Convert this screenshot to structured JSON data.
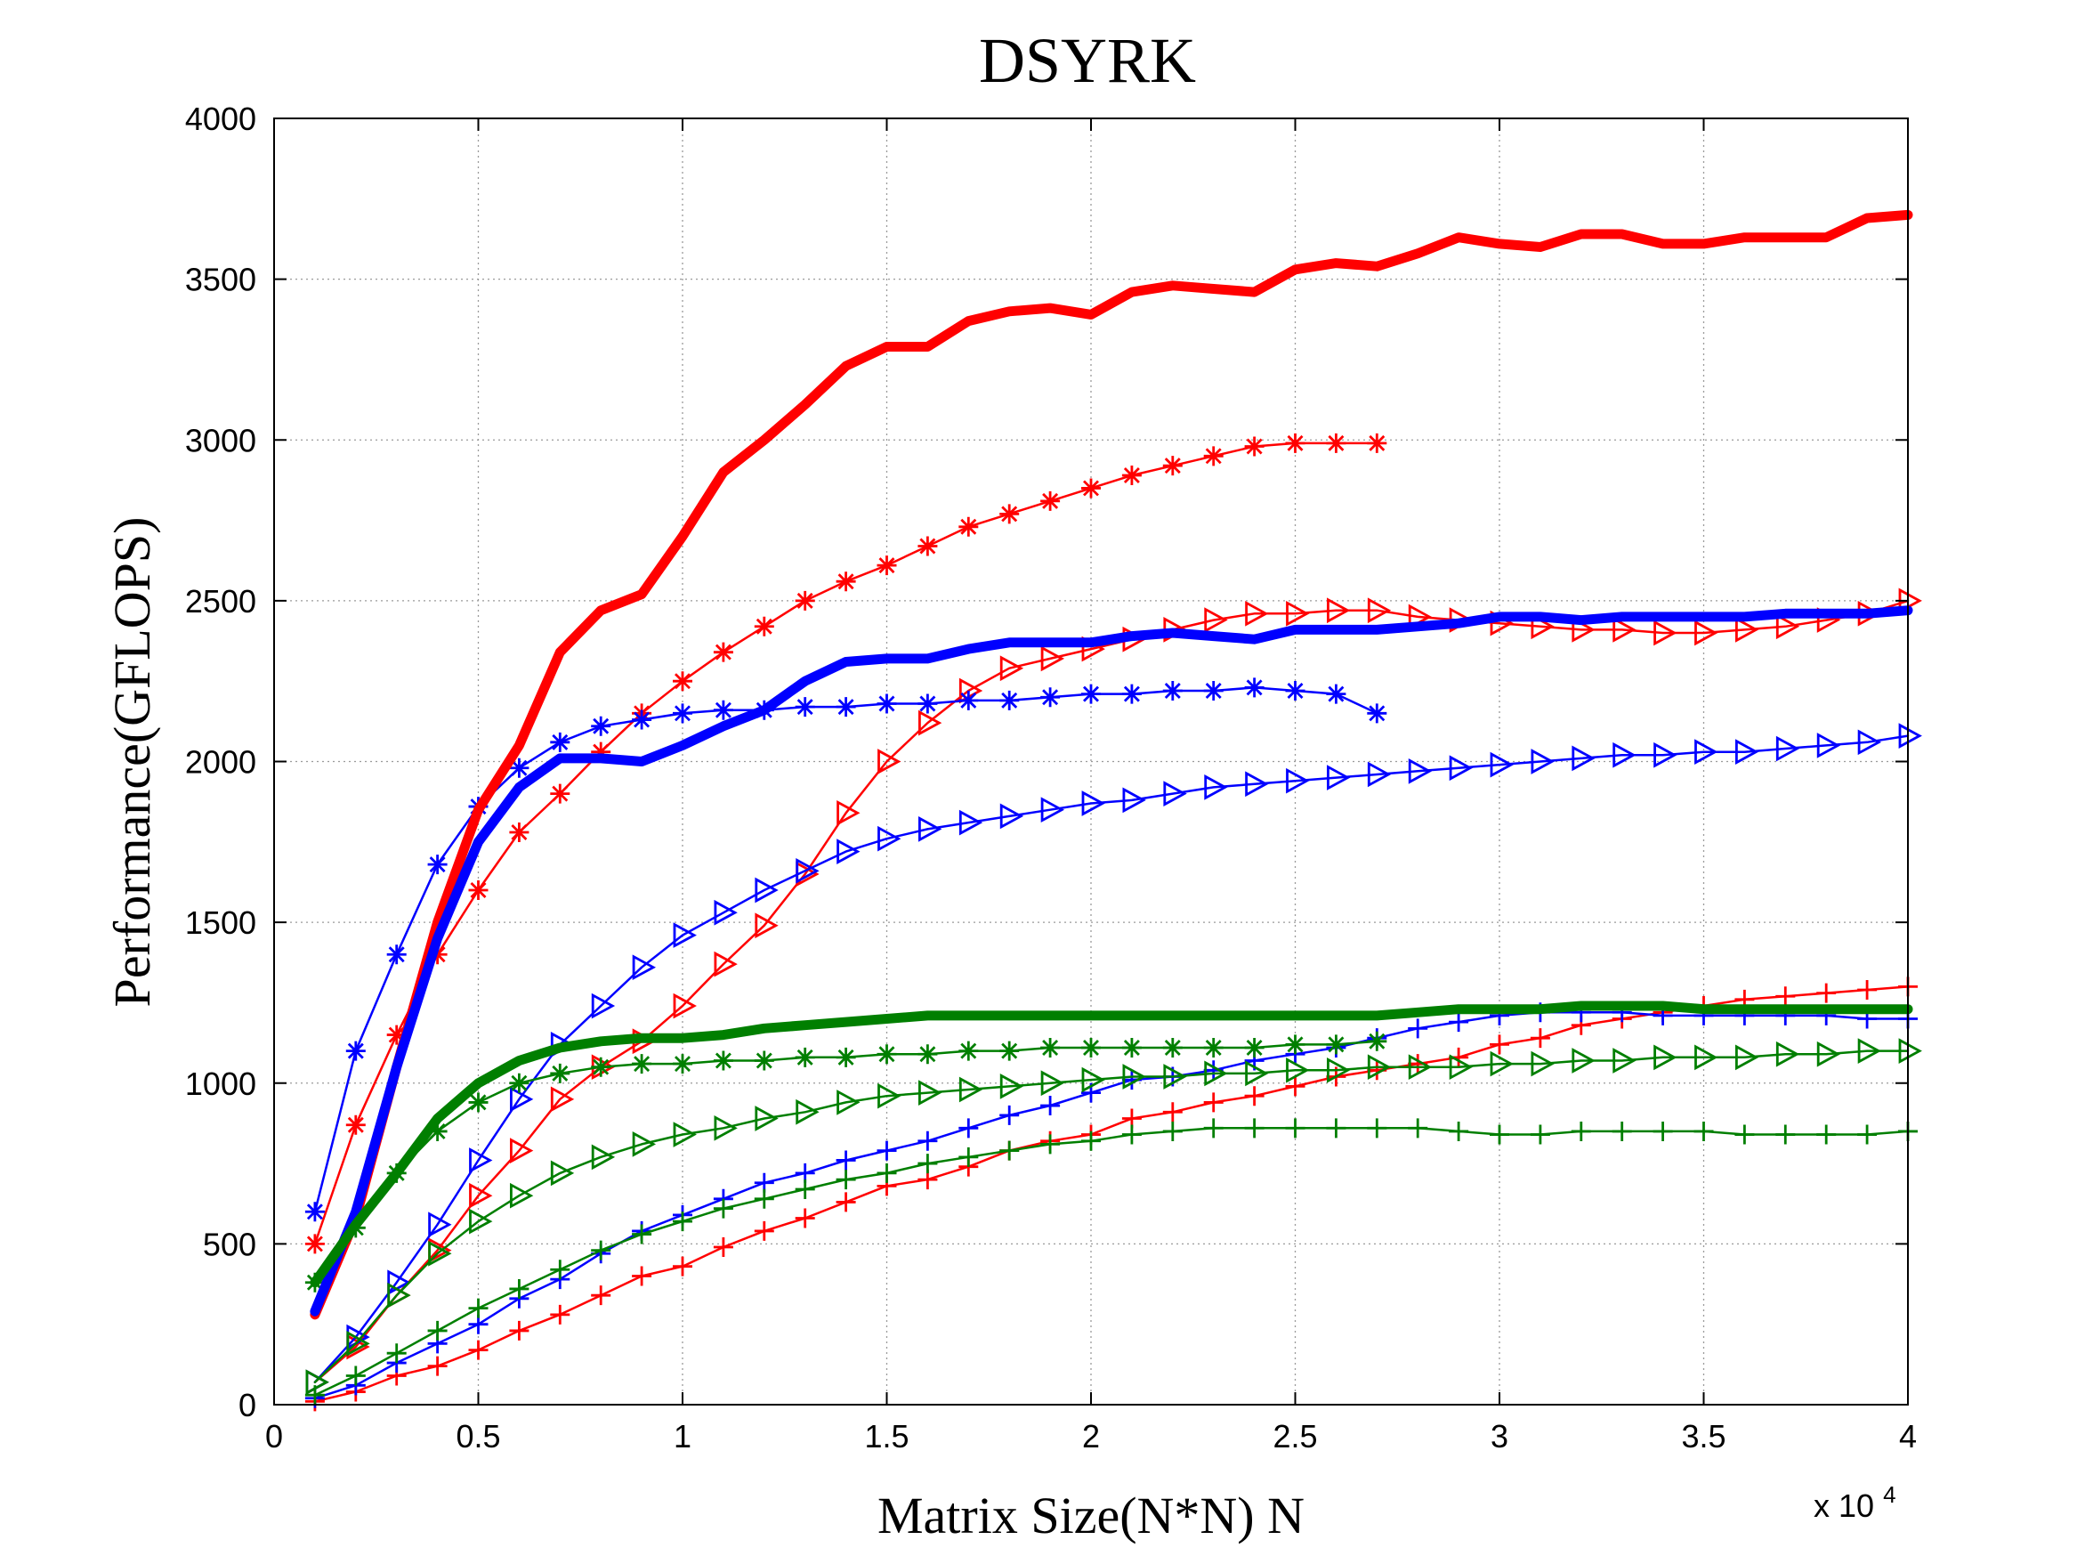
{
  "chart_data": {
    "type": "line",
    "title": "DSYRK",
    "xlabel": "Matrix Size(N*N) N",
    "ylabel": "Performance(GFLOPS)",
    "x_multiplier_label": "x 10",
    "x_multiplier_exponent": "4",
    "xlim": [
      0,
      4
    ],
    "ylim": [
      0,
      4000
    ],
    "grid": true,
    "x_ticks": [
      0,
      0.5,
      1,
      1.5,
      2,
      2.5,
      3,
      3.5,
      4
    ],
    "x_tick_labels": [
      "0",
      "0.5",
      "1",
      "1.5",
      "2",
      "2.5",
      "3",
      "3.5",
      "4"
    ],
    "y_ticks": [
      0,
      500,
      1000,
      1500,
      2000,
      2500,
      3000,
      3500,
      4000
    ],
    "y_tick_labels": [
      "0",
      "500",
      "1000",
      "1500",
      "2000",
      "2500",
      "3000",
      "3500",
      "4000"
    ],
    "colors": {
      "red": "#ff0000",
      "blue": "#0000ff",
      "green": "#007f00"
    },
    "series": [
      {
        "name": "red-thick",
        "color": "red",
        "marker": "none",
        "width": 11,
        "x": [
          0.1,
          0.2,
          0.3,
          0.4,
          0.5,
          0.6,
          0.7,
          0.8,
          0.9,
          1.0,
          1.1,
          1.2,
          1.3,
          1.4,
          1.5,
          1.6,
          1.7,
          1.8,
          1.9,
          2.0,
          2.1,
          2.2,
          2.3,
          2.4,
          2.5,
          2.6,
          2.7,
          2.8,
          2.9,
          3.0,
          3.1,
          3.2,
          3.3,
          3.4,
          3.5,
          3.6,
          3.7,
          3.8,
          3.9,
          4.0
        ],
        "y": [
          280,
          580,
          1050,
          1500,
          1850,
          2050,
          2340,
          2470,
          2520,
          2700,
          2900,
          3000,
          3110,
          3230,
          3290,
          3290,
          3370,
          3400,
          3410,
          3390,
          3460,
          3480,
          3470,
          3460,
          3530,
          3550,
          3540,
          3580,
          3630,
          3610,
          3600,
          3640,
          3640,
          3610,
          3610,
          3630,
          3630,
          3630,
          3690,
          3700
        ]
      },
      {
        "name": "red-star",
        "color": "red",
        "marker": "star",
        "width": 2.5,
        "x": [
          0.1,
          0.2,
          0.3,
          0.4,
          0.5,
          0.6,
          0.7,
          0.8,
          0.9,
          1.0,
          1.1,
          1.2,
          1.3,
          1.4,
          1.5,
          1.6,
          1.7,
          1.8,
          1.9,
          2.0,
          2.1,
          2.2,
          2.3,
          2.4,
          2.5,
          2.6,
          2.7
        ],
        "y": [
          500,
          870,
          1150,
          1400,
          1600,
          1780,
          1900,
          2030,
          2150,
          2250,
          2340,
          2420,
          2500,
          2560,
          2610,
          2670,
          2730,
          2770,
          2810,
          2850,
          2890,
          2920,
          2950,
          2980,
          2990,
          2990,
          2990
        ]
      },
      {
        "name": "red-triangle",
        "color": "red",
        "marker": "triangle",
        "width": 2.5,
        "x": [
          0.1,
          0.2,
          0.3,
          0.4,
          0.5,
          0.6,
          0.7,
          0.8,
          0.9,
          1.0,
          1.1,
          1.2,
          1.3,
          1.4,
          1.5,
          1.6,
          1.7,
          1.8,
          1.9,
          2.0,
          2.1,
          2.2,
          2.3,
          2.4,
          2.5,
          2.6,
          2.7,
          2.8,
          2.9,
          3.0,
          3.1,
          3.2,
          3.3,
          3.4,
          3.5,
          3.6,
          3.7,
          3.8,
          3.9,
          4.0
        ],
        "y": [
          70,
          180,
          340,
          480,
          650,
          790,
          950,
          1050,
          1130,
          1240,
          1370,
          1490,
          1650,
          1840,
          2000,
          2120,
          2220,
          2290,
          2320,
          2350,
          2380,
          2410,
          2440,
          2460,
          2460,
          2470,
          2470,
          2450,
          2440,
          2430,
          2420,
          2410,
          2410,
          2400,
          2400,
          2410,
          2420,
          2440,
          2460,
          2500
        ]
      },
      {
        "name": "red-plus",
        "color": "red",
        "marker": "plus",
        "width": 2.5,
        "x": [
          0.1,
          0.2,
          0.3,
          0.4,
          0.5,
          0.6,
          0.7,
          0.8,
          0.9,
          1.0,
          1.1,
          1.2,
          1.3,
          1.4,
          1.5,
          1.6,
          1.7,
          1.8,
          1.9,
          2.0,
          2.1,
          2.2,
          2.3,
          2.4,
          2.5,
          2.6,
          2.7,
          2.8,
          2.9,
          3.0,
          3.1,
          3.2,
          3.3,
          3.4,
          3.5,
          3.6,
          3.7,
          3.8,
          3.9,
          4.0
        ],
        "y": [
          10,
          40,
          90,
          120,
          170,
          230,
          280,
          340,
          400,
          430,
          490,
          540,
          580,
          630,
          680,
          700,
          740,
          790,
          820,
          840,
          890,
          910,
          940,
          960,
          990,
          1020,
          1040,
          1060,
          1080,
          1120,
          1140,
          1180,
          1200,
          1220,
          1240,
          1260,
          1270,
          1280,
          1290,
          1300
        ]
      },
      {
        "name": "blue-thick",
        "color": "blue",
        "marker": "none",
        "width": 11,
        "x": [
          0.1,
          0.2,
          0.3,
          0.4,
          0.5,
          0.6,
          0.7,
          0.8,
          0.9,
          1.0,
          1.1,
          1.2,
          1.3,
          1.4,
          1.5,
          1.6,
          1.7,
          1.8,
          1.9,
          2.0,
          2.1,
          2.2,
          2.3,
          2.4,
          2.5,
          2.6,
          2.7,
          2.8,
          2.9,
          3.0,
          3.1,
          3.2,
          3.3,
          3.4,
          3.5,
          3.6,
          3.7,
          3.8,
          3.9,
          4.0
        ],
        "y": [
          290,
          600,
          1050,
          1450,
          1750,
          1920,
          2010,
          2010,
          2000,
          2050,
          2110,
          2160,
          2250,
          2310,
          2320,
          2320,
          2350,
          2370,
          2370,
          2370,
          2390,
          2400,
          2390,
          2380,
          2410,
          2410,
          2410,
          2420,
          2430,
          2450,
          2450,
          2440,
          2450,
          2450,
          2450,
          2450,
          2460,
          2460,
          2460,
          2470
        ]
      },
      {
        "name": "blue-star",
        "color": "blue",
        "marker": "star",
        "width": 2.5,
        "x": [
          0.1,
          0.2,
          0.3,
          0.4,
          0.5,
          0.6,
          0.7,
          0.8,
          0.9,
          1.0,
          1.1,
          1.2,
          1.3,
          1.4,
          1.5,
          1.6,
          1.7,
          1.8,
          1.9,
          2.0,
          2.1,
          2.2,
          2.3,
          2.4,
          2.5,
          2.6,
          2.7
        ],
        "y": [
          600,
          1100,
          1400,
          1680,
          1860,
          1980,
          2060,
          2110,
          2130,
          2150,
          2160,
          2160,
          2170,
          2170,
          2180,
          2180,
          2190,
          2190,
          2200,
          2210,
          2210,
          2220,
          2220,
          2230,
          2220,
          2210,
          2150
        ]
      },
      {
        "name": "blue-triangle",
        "color": "blue",
        "marker": "triangle",
        "width": 2.5,
        "x": [
          0.1,
          0.2,
          0.3,
          0.4,
          0.5,
          0.6,
          0.7,
          0.8,
          0.9,
          1.0,
          1.1,
          1.2,
          1.3,
          1.4,
          1.5,
          1.6,
          1.7,
          1.8,
          1.9,
          2.0,
          2.1,
          2.2,
          2.3,
          2.4,
          2.5,
          2.6,
          2.7,
          2.8,
          2.9,
          3.0,
          3.1,
          3.2,
          3.3,
          3.4,
          3.5,
          3.6,
          3.7,
          3.8,
          3.9,
          4.0
        ],
        "y": [
          70,
          210,
          380,
          560,
          760,
          950,
          1120,
          1240,
          1360,
          1460,
          1530,
          1600,
          1660,
          1720,
          1760,
          1790,
          1810,
          1830,
          1850,
          1870,
          1880,
          1900,
          1920,
          1930,
          1940,
          1950,
          1960,
          1970,
          1980,
          1990,
          2000,
          2010,
          2020,
          2020,
          2030,
          2030,
          2040,
          2050,
          2060,
          2080
        ]
      },
      {
        "name": "blue-plus",
        "color": "blue",
        "marker": "plus",
        "width": 2.5,
        "x": [
          0.1,
          0.2,
          0.3,
          0.4,
          0.5,
          0.6,
          0.7,
          0.8,
          0.9,
          1.0,
          1.1,
          1.2,
          1.3,
          1.4,
          1.5,
          1.6,
          1.7,
          1.8,
          1.9,
          2.0,
          2.1,
          2.2,
          2.3,
          2.4,
          2.5,
          2.6,
          2.7,
          2.8,
          2.9,
          3.0,
          3.1,
          3.2,
          3.3,
          3.4,
          3.5,
          3.6,
          3.7,
          3.8,
          3.9,
          4.0
        ],
        "y": [
          20,
          60,
          130,
          190,
          250,
          330,
          390,
          470,
          540,
          590,
          640,
          690,
          720,
          760,
          790,
          820,
          860,
          900,
          930,
          970,
          1010,
          1020,
          1040,
          1070,
          1090,
          1110,
          1140,
          1170,
          1190,
          1210,
          1220,
          1220,
          1220,
          1210,
          1210,
          1210,
          1210,
          1210,
          1200,
          1200
        ]
      },
      {
        "name": "green-thick",
        "color": "green",
        "marker": "none",
        "width": 11,
        "x": [
          0.1,
          0.2,
          0.3,
          0.4,
          0.5,
          0.6,
          0.7,
          0.8,
          0.9,
          1.0,
          1.1,
          1.2,
          1.3,
          1.4,
          1.5,
          1.6,
          1.7,
          1.8,
          1.9,
          2.0,
          2.1,
          2.2,
          2.3,
          2.4,
          2.5,
          2.6,
          2.7,
          2.8,
          2.9,
          3.0,
          3.1,
          3.2,
          3.3,
          3.4,
          3.5,
          3.6,
          3.7,
          3.8,
          3.9,
          4.0
        ],
        "y": [
          380,
          560,
          720,
          890,
          1000,
          1070,
          1110,
          1130,
          1140,
          1140,
          1150,
          1170,
          1180,
          1190,
          1200,
          1210,
          1210,
          1210,
          1210,
          1210,
          1210,
          1210,
          1210,
          1210,
          1210,
          1210,
          1210,
          1220,
          1230,
          1230,
          1230,
          1240,
          1240,
          1240,
          1230,
          1230,
          1230,
          1230,
          1230,
          1230
        ]
      },
      {
        "name": "green-star",
        "color": "green",
        "marker": "star",
        "width": 2.5,
        "x": [
          0.1,
          0.2,
          0.3,
          0.4,
          0.5,
          0.6,
          0.7,
          0.8,
          0.9,
          1.0,
          1.1,
          1.2,
          1.3,
          1.4,
          1.5,
          1.6,
          1.7,
          1.8,
          1.9,
          2.0,
          2.1,
          2.2,
          2.3,
          2.4,
          2.5,
          2.6,
          2.7
        ],
        "y": [
          380,
          550,
          720,
          850,
          940,
          1000,
          1030,
          1050,
          1060,
          1060,
          1070,
          1070,
          1080,
          1080,
          1090,
          1090,
          1100,
          1100,
          1110,
          1110,
          1110,
          1110,
          1110,
          1110,
          1120,
          1120,
          1130
        ]
      },
      {
        "name": "green-triangle",
        "color": "green",
        "marker": "triangle",
        "width": 2.5,
        "x": [
          0.1,
          0.2,
          0.3,
          0.4,
          0.5,
          0.6,
          0.7,
          0.8,
          0.9,
          1.0,
          1.1,
          1.2,
          1.3,
          1.4,
          1.5,
          1.6,
          1.7,
          1.8,
          1.9,
          2.0,
          2.1,
          2.2,
          2.3,
          2.4,
          2.5,
          2.6,
          2.7,
          2.8,
          2.9,
          3.0,
          3.1,
          3.2,
          3.3,
          3.4,
          3.5,
          3.6,
          3.7,
          3.8,
          3.9,
          4.0
        ],
        "y": [
          70,
          190,
          340,
          470,
          570,
          650,
          720,
          770,
          810,
          840,
          860,
          890,
          910,
          940,
          960,
          970,
          980,
          990,
          1000,
          1010,
          1020,
          1020,
          1030,
          1030,
          1040,
          1040,
          1050,
          1050,
          1050,
          1060,
          1060,
          1070,
          1070,
          1080,
          1080,
          1080,
          1090,
          1090,
          1100,
          1100
        ]
      },
      {
        "name": "green-plus",
        "color": "green",
        "marker": "plus",
        "width": 2.5,
        "x": [
          0.1,
          0.2,
          0.3,
          0.4,
          0.5,
          0.6,
          0.7,
          0.8,
          0.9,
          1.0,
          1.1,
          1.2,
          1.3,
          1.4,
          1.5,
          1.6,
          1.7,
          1.8,
          1.9,
          2.0,
          2.1,
          2.2,
          2.3,
          2.4,
          2.5,
          2.6,
          2.7,
          2.8,
          2.9,
          3.0,
          3.1,
          3.2,
          3.3,
          3.4,
          3.5,
          3.6,
          3.7,
          3.8,
          3.9,
          4.0
        ],
        "y": [
          30,
          90,
          160,
          230,
          300,
          360,
          420,
          480,
          530,
          570,
          610,
          640,
          670,
          700,
          720,
          750,
          770,
          790,
          810,
          820,
          840,
          850,
          860,
          860,
          860,
          860,
          860,
          860,
          850,
          840,
          840,
          850,
          850,
          850,
          850,
          840,
          840,
          840,
          840,
          850
        ]
      }
    ]
  }
}
